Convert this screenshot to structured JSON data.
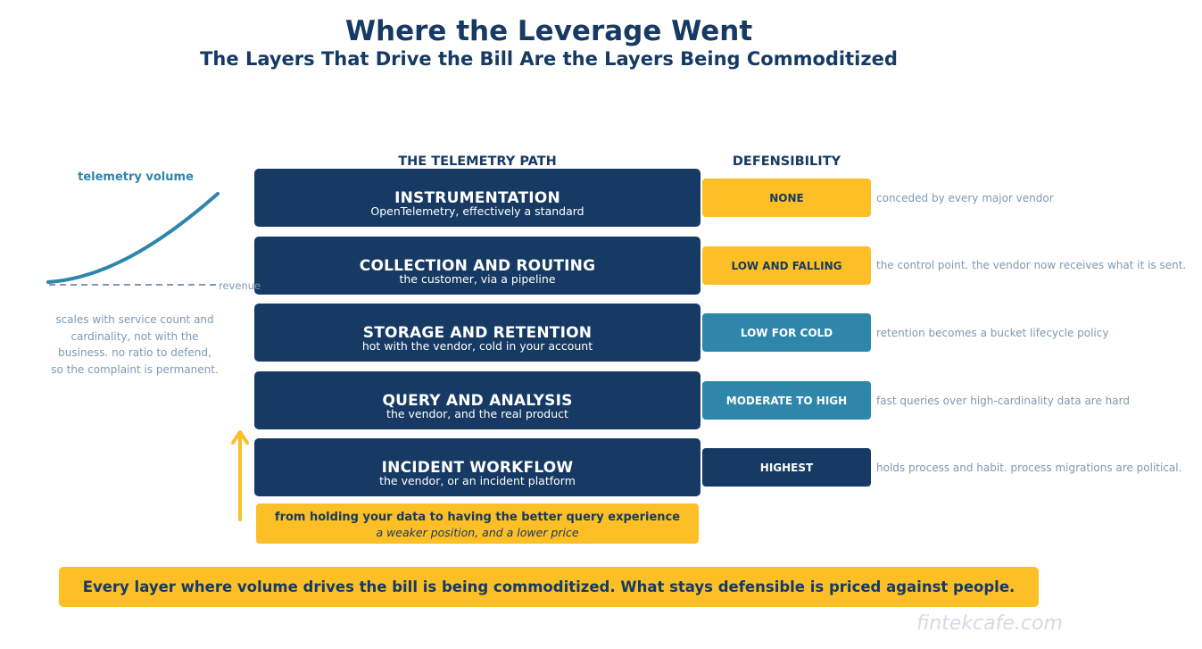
{
  "header": {
    "title": "Where the Leverage Went",
    "subtitle": "The Layers That Drive the Bill Are the Layers Being Commoditized"
  },
  "columns": {
    "path": "THE TELEMETRY PATH",
    "defensibility": "DEFENSIBILITY"
  },
  "layers": [
    {
      "name": "INSTRUMENTATION",
      "description": "OpenTelemetry, effectively a standard",
      "defensibility": "NONE",
      "note": "conceded by every major vendor"
    },
    {
      "name": "COLLECTION AND ROUTING",
      "description": "the customer, via a pipeline",
      "defensibility": "LOW AND FALLING",
      "note": "the control point. the vendor now receives what it is sent."
    },
    {
      "name": "STORAGE AND RETENTION",
      "description": "hot with the vendor, cold in your account",
      "defensibility": "LOW FOR COLD",
      "note": "retention becomes a bucket lifecycle policy"
    },
    {
      "name": "QUERY AND ANALYSIS",
      "description": "the vendor, and the real product",
      "defensibility": "MODERATE TO HIGH",
      "note": "fast queries over high-cardinality data are hard"
    },
    {
      "name": "INCIDENT WORKFLOW",
      "description": "the vendor, or an incident platform",
      "defensibility": "HIGHEST",
      "note": "holds process and habit. process migrations are political."
    }
  ],
  "side_panel": {
    "volume_label": "telemetry volume",
    "revenue_label": "revenue",
    "explanation": [
      "scales with service count and",
      "cardinality, not with the",
      "business. no ratio to defend,",
      "so the complaint is permanent."
    ]
  },
  "shift": {
    "main": "from holding your data to having the better query experience",
    "sub": "a weaker position, and a lower price"
  },
  "conclusion": "Every layer where volume drives the bill is being commoditized. What stays defensible is priced against people.",
  "watermark": "fintekcafe.com",
  "colors": {
    "navy": "#163a63",
    "yellow": "#fcbf26",
    "teal": "#2e86ab",
    "muted": "#7f99b2"
  }
}
